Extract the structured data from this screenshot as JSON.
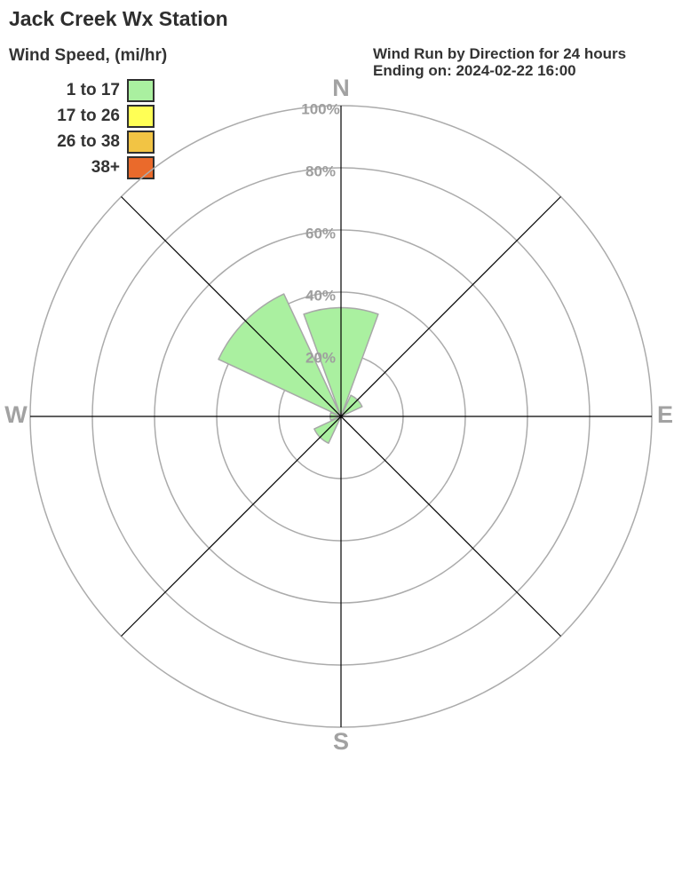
{
  "title": "Jack Creek Wx Station",
  "legend": {
    "title": "Wind Speed, (mi/hr)",
    "items": [
      {
        "label": "1 to 17",
        "color": "#aaf0a0"
      },
      {
        "label": "17 to 26",
        "color": "#ffff55"
      },
      {
        "label": "26 to 38",
        "color": "#f2c444"
      },
      {
        "label": "38+",
        "color": "#ea6a2b"
      }
    ]
  },
  "header": {
    "line1": "Wind Run by Direction for 24 hours",
    "line2": "Ending on: 2024-02-22 16:00"
  },
  "chart_data": {
    "type": "windrose",
    "title": "Wind Run by Direction for 24 hours",
    "subtitle": "Ending on: 2024-02-22 16:00",
    "units": "percent of wind run",
    "categories": [
      "N",
      "NE",
      "E",
      "SE",
      "S",
      "SW",
      "W",
      "NW"
    ],
    "series": [
      {
        "name": "1 to 17",
        "color": "#aaf0a0",
        "values": [
          35,
          7.5,
          0,
          0,
          0,
          9.5,
          3.5,
          43.5
        ]
      }
    ],
    "radial_axis": {
      "tick_labels": [
        "20%",
        "40%",
        "60%",
        "80%",
        "100%"
      ],
      "tick_values": [
        20,
        40,
        60,
        80,
        100
      ],
      "max": 100,
      "grid": true
    },
    "angular_axis": {
      "compass_labels": [
        "N",
        "E",
        "S",
        "W"
      ],
      "sector_width_deg": 45
    },
    "legend_position": "top-left",
    "colors": {
      "grid_ring": "#ababab",
      "axis_line": "#000000",
      "tick_label": "#9e9e9e",
      "compass_label": "#a2a2a2",
      "wedge_stroke": "#a8a8a8"
    }
  }
}
